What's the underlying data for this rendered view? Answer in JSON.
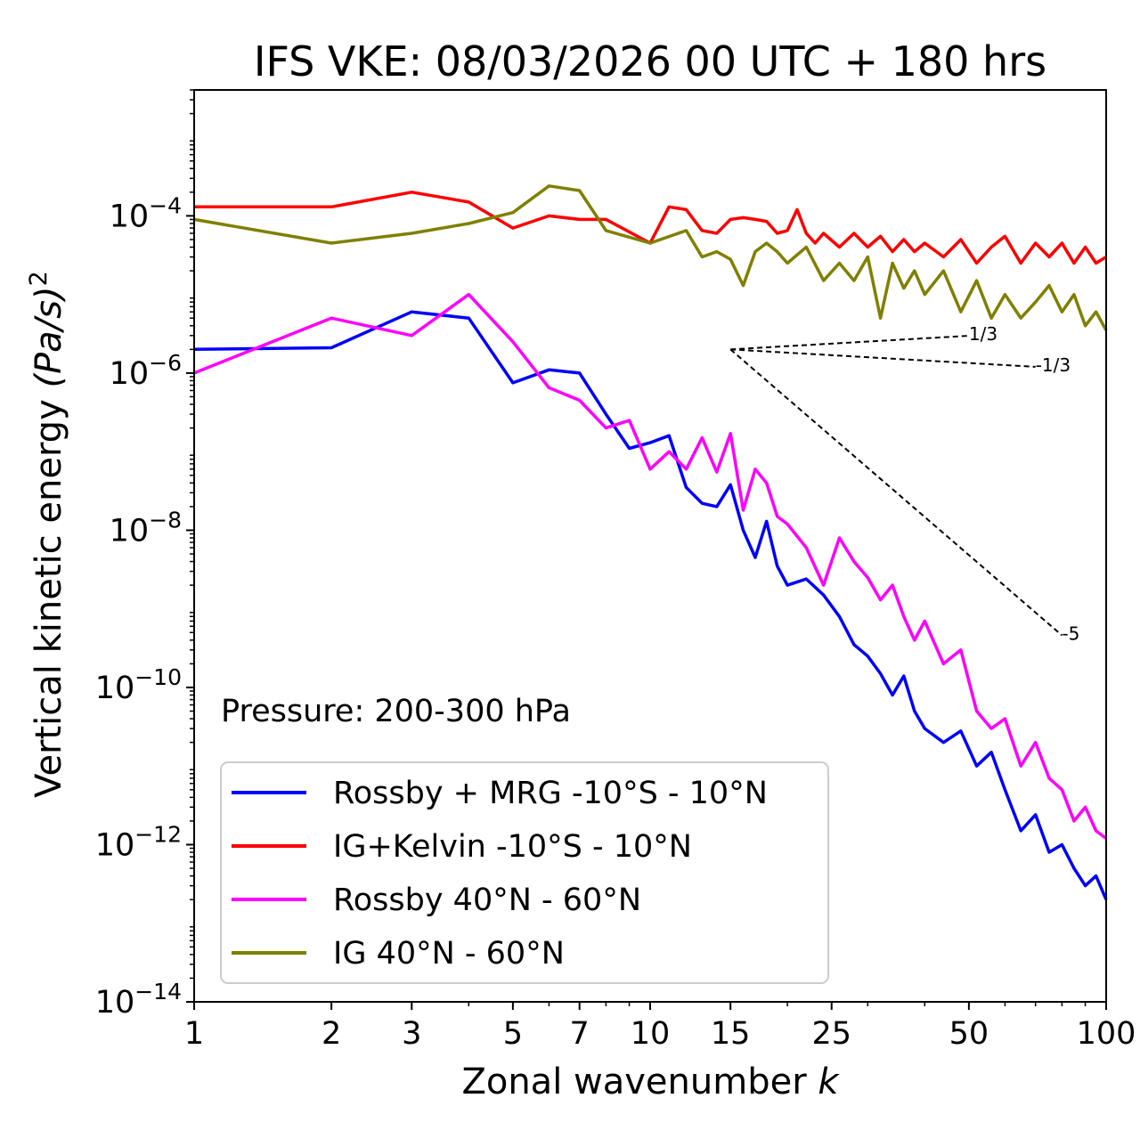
{
  "chart_data": {
    "type": "line",
    "title": "IFS VKE: 08/03/2026 00 UTC + 180 hrs",
    "xlabel": "Zonal wavenumber",
    "xlabel_var": "k",
    "ylabel": "Vertical kinetic energy",
    "ylabel_unit_base": "(Pa/s)",
    "ylabel_unit_exp": "2",
    "xscale": "log",
    "yscale": "log",
    "xlim": [
      1,
      100
    ],
    "ylim": [
      1e-14,
      0.004
    ],
    "xticks": [
      1,
      2,
      3,
      5,
      7,
      10,
      15,
      25,
      50,
      100
    ],
    "xtick_labels": [
      "1",
      "2",
      "3",
      "5",
      "7",
      "10",
      "15",
      "25",
      "50",
      "100"
    ],
    "yticks": [
      1e-14,
      1e-12,
      1e-10,
      1e-08,
      1e-06,
      0.0001
    ],
    "ytick_base": "10",
    "ytick_exponents": [
      "−14",
      "−12",
      "−10",
      "−8",
      "−6",
      "−4"
    ],
    "annotation": "Pressure: 200-300 hPa",
    "legend_position": "lower-left",
    "series": [
      {
        "name": "Rossby + MRG -10°S - 10°N",
        "color": "#0000ff",
        "x": [
          1,
          2,
          3,
          4,
          5,
          6,
          7,
          8,
          9,
          10,
          11,
          12,
          13,
          14,
          15,
          16,
          17,
          18,
          19,
          20,
          22,
          24,
          26,
          28,
          30,
          32,
          34,
          36,
          38,
          40,
          44,
          48,
          52,
          56,
          60,
          65,
          70,
          75,
          80,
          85,
          90,
          95,
          100
        ],
        "y": [
          2e-06,
          2.1e-06,
          6e-06,
          5e-06,
          7.5e-07,
          1.1e-06,
          1e-06,
          3e-07,
          1.1e-07,
          1.3e-07,
          1.6e-07,
          3.5e-08,
          2.2e-08,
          2e-08,
          3.8e-08,
          1e-08,
          4.5e-09,
          1.3e-08,
          3.5e-09,
          2e-09,
          2.4e-09,
          1.5e-09,
          8e-10,
          3.5e-10,
          2.5e-10,
          1.5e-10,
          8e-11,
          1.4e-10,
          5e-11,
          3e-11,
          2e-11,
          2.8e-11,
          1e-11,
          1.5e-11,
          5e-12,
          1.5e-12,
          2.4e-12,
          8e-13,
          1e-12,
          5e-13,
          3e-13,
          4e-13,
          2e-13
        ]
      },
      {
        "name": "IG+Kelvin -10°S - 10°N",
        "color": "#ff0000",
        "x": [
          1,
          2,
          3,
          4,
          5,
          6,
          7,
          8,
          10,
          11,
          12,
          13,
          14,
          15,
          16,
          17,
          18,
          19,
          20,
          21,
          22,
          23,
          24,
          26,
          28,
          30,
          32,
          34,
          36,
          38,
          40,
          44,
          48,
          52,
          56,
          60,
          65,
          70,
          75,
          80,
          85,
          90,
          95,
          100
        ],
        "y": [
          0.00013,
          0.00013,
          0.0002,
          0.00015,
          7e-05,
          0.0001,
          9e-05,
          9e-05,
          4.5e-05,
          0.00013,
          0.00012,
          6.5e-05,
          6e-05,
          9e-05,
          9.5e-05,
          9e-05,
          8.5e-05,
          6e-05,
          6.5e-05,
          0.00012,
          6e-05,
          4.5e-05,
          6e-05,
          4e-05,
          6e-05,
          4e-05,
          5.5e-05,
          3.5e-05,
          5e-05,
          3.5e-05,
          4.5e-05,
          3e-05,
          5e-05,
          2.5e-05,
          4e-05,
          5.5e-05,
          2.5e-05,
          4.5e-05,
          3e-05,
          4.5e-05,
          2.5e-05,
          4e-05,
          2.5e-05,
          3e-05
        ]
      },
      {
        "name": "Rossby 40°N - 60°N",
        "color": "#ff00ff",
        "x": [
          1,
          2,
          3,
          4,
          5,
          6,
          7,
          8,
          9,
          10,
          11,
          12,
          13,
          14,
          15,
          16,
          17,
          18,
          19,
          20,
          22,
          24,
          26,
          28,
          30,
          32,
          34,
          36,
          38,
          40,
          44,
          48,
          52,
          56,
          60,
          65,
          70,
          75,
          80,
          85,
          90,
          95,
          100
        ],
        "y": [
          1e-06,
          5e-06,
          3e-06,
          1e-05,
          2.5e-06,
          6.5e-07,
          4.5e-07,
          2e-07,
          2.5e-07,
          6e-08,
          1e-07,
          6e-08,
          1.5e-07,
          5.5e-08,
          1.7e-07,
          1.8e-08,
          6e-08,
          4e-08,
          1.5e-08,
          1.2e-08,
          6e-09,
          2e-09,
          8e-09,
          4e-09,
          2.5e-09,
          1.3e-09,
          2e-09,
          8e-10,
          4e-10,
          7e-10,
          2e-10,
          3e-10,
          5e-11,
          3e-11,
          4e-11,
          1e-11,
          2e-11,
          7e-12,
          5e-12,
          2e-12,
          3e-12,
          1.5e-12,
          1.2e-12
        ]
      },
      {
        "name": "IG 40°N - 60°N",
        "color": "#808000",
        "x": [
          1,
          2,
          3,
          4,
          5,
          6,
          7,
          8,
          10,
          12,
          13,
          14,
          15,
          16,
          17,
          18,
          19,
          20,
          22,
          24,
          26,
          28,
          30,
          32,
          34,
          36,
          38,
          40,
          44,
          48,
          52,
          56,
          60,
          65,
          70,
          75,
          80,
          85,
          90,
          95,
          100
        ],
        "y": [
          9e-05,
          4.5e-05,
          6e-05,
          8e-05,
          0.00011,
          0.00024,
          0.00021,
          6.5e-05,
          4.5e-05,
          6.5e-05,
          3e-05,
          3.5e-05,
          2.8e-05,
          1.3e-05,
          3.5e-05,
          4.5e-05,
          3.5e-05,
          2.5e-05,
          4e-05,
          1.5e-05,
          2.5e-05,
          1.5e-05,
          3e-05,
          5e-06,
          2.5e-05,
          1.2e-05,
          2e-05,
          1e-05,
          2e-05,
          6e-06,
          1.5e-05,
          5e-06,
          1e-05,
          5e-06,
          8e-06,
          1.3e-05,
          6e-06,
          1e-05,
          4e-06,
          6e-06,
          3.5e-06
        ]
      }
    ],
    "reference_lines": [
      {
        "label": "1/3",
        "slope": 0.3333,
        "x": [
          15,
          50
        ],
        "y": [
          2e-06,
          2.98e-06
        ]
      },
      {
        "label": "-1/3",
        "slope": -0.3333,
        "x": [
          15,
          70
        ],
        "y": [
          2e-06,
          1.2e-06
        ]
      },
      {
        "label": "-5",
        "slope": -5,
        "x": [
          15,
          80
        ],
        "y": [
          2e-06,
          4.6e-10
        ]
      }
    ]
  }
}
